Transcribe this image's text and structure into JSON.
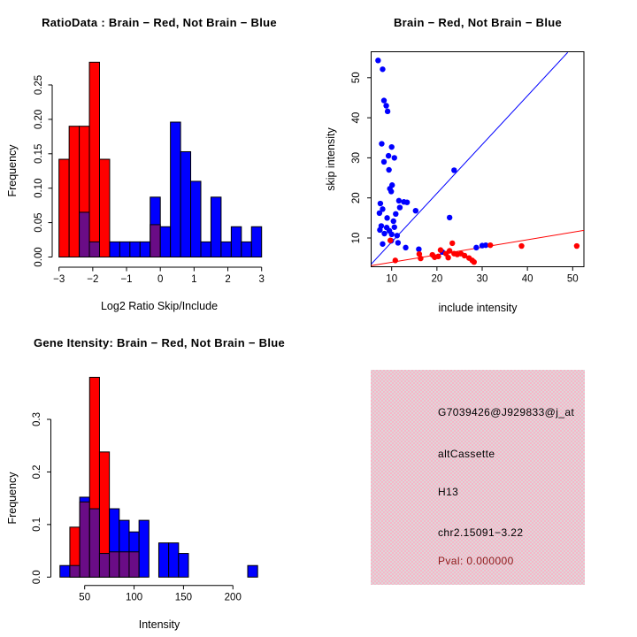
{
  "app": {
    "background": "#ffffff"
  },
  "colors": {
    "red": "#ff0000",
    "blue": "#0000ff",
    "purple": "#6a0c86",
    "axis": "#000000",
    "pval_red": "#8b1a1a",
    "pink_panel_a": "#f6b6c8",
    "pink_panel_b": "#ded6d9"
  },
  "chart_data": [
    {
      "id": "ratio_histogram",
      "type": "bar",
      "subtype": "overlaid-histogram",
      "title": "RatioData : Brain − Red, Not Brain − Blue",
      "xlabel": "Log2 Ratio Skip/Include",
      "ylabel": "Frequency",
      "bin_start": -3,
      "bin_width": 0.3,
      "x_tick_values": [
        -3,
        -2,
        -1,
        0,
        1,
        2,
        3
      ],
      "x_tick_labels": [
        "−3",
        "−2",
        "−1",
        "0",
        "1",
        "2",
        "3"
      ],
      "y_tick_values": [
        0.0,
        0.05,
        0.1,
        0.15,
        0.2,
        0.25
      ],
      "y_tick_labels": [
        "0.00",
        "0.05",
        "0.10",
        "0.15",
        "0.20",
        "0.25"
      ],
      "ylim": [
        0,
        0.29
      ],
      "series": [
        {
          "name": "Brain (red)",
          "values": [
            0.142,
            0.19,
            0.19,
            0.283,
            0.142,
            0,
            0,
            0,
            0,
            0.047,
            0,
            0,
            0,
            0,
            0,
            0,
            0,
            0,
            0,
            0
          ]
        },
        {
          "name": "Not Brain (blue)",
          "values": [
            0,
            0,
            0.065,
            0.022,
            0,
            0.022,
            0.022,
            0.022,
            0.022,
            0.087,
            0.044,
            0.196,
            0.153,
            0.11,
            0.022,
            0.087,
            0.022,
            0.044,
            0.022,
            0.044
          ]
        }
      ],
      "overlap_color_note": "overlap drawn purple"
    },
    {
      "id": "intensity_scatter",
      "type": "scatter",
      "title": "Brain − Red, Not Brain − Blue",
      "xlabel": "include intensity",
      "ylabel": "skip intensity",
      "xlim": [
        5.4,
        52.5
      ],
      "ylim": [
        2.8,
        56.4
      ],
      "x_tick_values": [
        10,
        20,
        30,
        40,
        50
      ],
      "x_tick_labels": [
        "10",
        "20",
        "30",
        "40",
        "50"
      ],
      "y_tick_values": [
        10,
        20,
        30,
        40,
        50
      ],
      "y_tick_labels": [
        "10",
        "20",
        "30",
        "40",
        "50"
      ],
      "blue_points": [
        [
          7.0,
          54.3
        ],
        [
          8.0,
          52.1
        ],
        [
          8.3,
          44.3
        ],
        [
          8.8,
          43.0
        ],
        [
          9.1,
          41.6
        ],
        [
          7.8,
          33.5
        ],
        [
          10.0,
          32.7
        ],
        [
          9.3,
          30.5
        ],
        [
          10.6,
          30.0
        ],
        [
          8.3,
          29.0
        ],
        [
          9.4,
          27.0
        ],
        [
          23.8,
          26.9
        ],
        [
          10.1,
          23.2
        ],
        [
          9.6,
          22.3
        ],
        [
          9.9,
          21.6
        ],
        [
          11.6,
          19.3
        ],
        [
          12.7,
          19.0
        ],
        [
          7.5,
          18.6
        ],
        [
          13.4,
          18.9
        ],
        [
          11.8,
          17.6
        ],
        [
          8.0,
          17.2
        ],
        [
          7.3,
          16.2
        ],
        [
          10.9,
          16.0
        ],
        [
          15.3,
          16.8
        ],
        [
          9.0,
          15.0
        ],
        [
          22.8,
          15.1
        ],
        [
          10.4,
          14.2
        ],
        [
          7.7,
          13.0
        ],
        [
          8.9,
          12.6
        ],
        [
          10.6,
          12.7
        ],
        [
          7.4,
          12.0
        ],
        [
          9.5,
          11.8
        ],
        [
          8.4,
          11.1
        ],
        [
          10.0,
          10.9
        ],
        [
          11.2,
          10.6
        ],
        [
          8.0,
          8.5
        ],
        [
          9.9,
          9.3
        ],
        [
          11.4,
          8.8
        ],
        [
          13.1,
          7.6
        ],
        [
          16.0,
          7.2
        ],
        [
          21.2,
          6.5
        ],
        [
          28.7,
          7.6
        ],
        [
          30.0,
          8.1
        ],
        [
          30.8,
          8.2
        ]
      ],
      "red_points": [
        [
          9.7,
          9.4
        ],
        [
          10.8,
          4.4
        ],
        [
          16.1,
          6.0
        ],
        [
          16.4,
          4.9
        ],
        [
          19.0,
          5.8
        ],
        [
          19.5,
          5.2
        ],
        [
          20.3,
          5.4
        ],
        [
          20.8,
          7.0
        ],
        [
          22.0,
          6.1
        ],
        [
          22.5,
          5.1
        ],
        [
          22.8,
          6.8
        ],
        [
          23.4,
          8.7
        ],
        [
          23.8,
          6.1
        ],
        [
          24.5,
          5.9
        ],
        [
          25.3,
          6.1
        ],
        [
          26.1,
          5.6
        ],
        [
          27.1,
          5.0
        ],
        [
          27.8,
          4.4
        ],
        [
          28.2,
          4.0
        ],
        [
          31.8,
          8.2
        ],
        [
          38.7,
          8.0
        ],
        [
          50.9,
          8.0
        ]
      ],
      "blue_line": [
        [
          5.5,
          3.5
        ],
        [
          48.9,
          56.3
        ]
      ],
      "red_line": [
        [
          5.5,
          3.1
        ],
        [
          52.5,
          11.9
        ]
      ]
    },
    {
      "id": "gene_intensity_histogram",
      "type": "bar",
      "subtype": "overlaid-histogram",
      "title": "Gene Itensity: Brain − Red, Not Brain − Blue",
      "xlabel": "Intensity",
      "ylabel": "Frequency",
      "bin_start": 25,
      "bin_width": 10,
      "x_tick_values": [
        50,
        100,
        150,
        200
      ],
      "x_tick_labels": [
        "50",
        "100",
        "150",
        "200"
      ],
      "y_tick_values": [
        0.0,
        0.1,
        0.2,
        0.3
      ],
      "y_tick_labels": [
        "0.0",
        "0.1",
        "0.2",
        "0.3"
      ],
      "ylim": [
        0,
        0.39
      ],
      "series": [
        {
          "name": "Brain (red)",
          "values": [
            0,
            0.095,
            0.143,
            0.38,
            0.238,
            0.048,
            0.048,
            0.048,
            0,
            0,
            0,
            0,
            0,
            0,
            0,
            0,
            0,
            0,
            0,
            0
          ]
        },
        {
          "name": "Not Brain (blue)",
          "values": [
            0.022,
            0.022,
            0.152,
            0.13,
            0.045,
            0.13,
            0.108,
            0.086,
            0.108,
            0,
            0.065,
            0.065,
            0.045,
            0,
            0,
            0,
            0,
            0,
            0,
            0.022
          ]
        }
      ],
      "overlap_color_note": "overlap drawn purple"
    },
    {
      "id": "info_panel",
      "type": "table",
      "lines": [
        {
          "text": "G7039426@J929833@j_at",
          "color": "#000000"
        },
        {
          "text": "altCassette",
          "color": "#000000"
        },
        {
          "text": "H13",
          "color": "#000000"
        },
        {
          "text": "chr2.15091−3.22",
          "color": "#000000"
        },
        {
          "text": "Pval: 0.000000",
          "color": "#8b1a1a"
        }
      ]
    }
  ],
  "info_panel": {
    "lines": [
      {
        "text": "G7039426@J929833@j_at",
        "color": "#000000"
      },
      {
        "text": "altCassette",
        "color": "#000000"
      },
      {
        "text": "H13",
        "color": "#000000"
      },
      {
        "text": "chr2.15091−3.22",
        "color": "#000000"
      },
      {
        "text": "Pval: 0.000000",
        "color": "#8b1a1a"
      }
    ]
  }
}
